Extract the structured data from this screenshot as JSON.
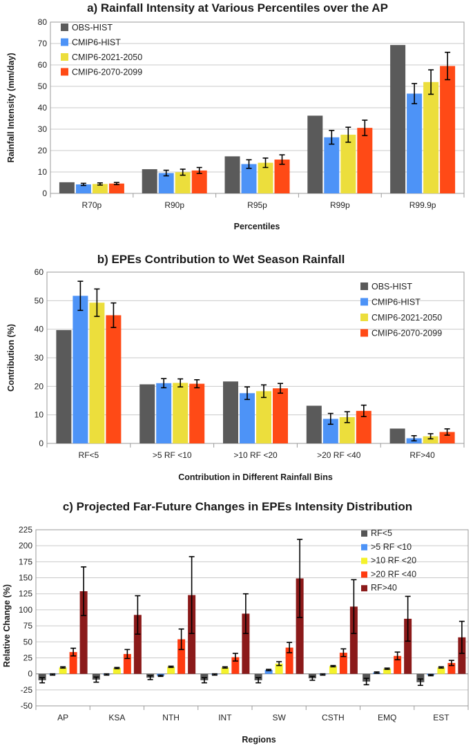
{
  "colors": {
    "obs": "#5a5a5a",
    "hist": "#4d93f7",
    "mid": "#ecde3c",
    "far": "#ff4a16",
    "rf5": "#555555",
    "rf10": "#4d93f7",
    "rf20": "#f4f22c",
    "rf40": "#ff3b10",
    "rfgt40": "#8b1a1a"
  },
  "chart_data": [
    {
      "type": "bar",
      "title": "a) Rainfall Intensity at Various Percentiles over the AP",
      "xlabel": "Percentiles",
      "ylabel": "Rainfall Intensity (mm/day)",
      "ylim": [
        0,
        80
      ],
      "yticks": [
        0,
        10,
        20,
        30,
        40,
        50,
        60,
        70,
        80
      ],
      "legend_position": "top-left",
      "categories": [
        "R70p",
        "R90p",
        "R95p",
        "R99p",
        "R99.9p"
      ],
      "series": [
        {
          "name": "OBS-HIST",
          "color_key": "obs",
          "values": [
            5.2,
            11.3,
            17.3,
            36.3,
            69.3
          ],
          "errors": [
            null,
            null,
            null,
            null,
            null
          ]
        },
        {
          "name": "CMIP6-HIST",
          "color_key": "hist",
          "values": [
            4.2,
            9.5,
            13.7,
            26.2,
            46.6
          ],
          "errors": [
            0.5,
            1.3,
            2.0,
            3.2,
            4.7
          ]
        },
        {
          "name": "CMIP6-2021-2050",
          "color_key": "mid",
          "values": [
            4.4,
            9.9,
            14.3,
            27.4,
            52.0
          ],
          "errors": [
            0.5,
            1.4,
            2.2,
            3.5,
            5.7
          ]
        },
        {
          "name": "CMIP6-2070-2099",
          "color_key": "far",
          "values": [
            4.6,
            10.7,
            15.8,
            30.6,
            59.5
          ],
          "errors": [
            0.5,
            1.4,
            2.2,
            3.6,
            6.4
          ]
        }
      ]
    },
    {
      "type": "bar",
      "title": "b) EPEs Contribution to Wet Season Rainfall",
      "xlabel": "Contribution in Different Rainfall Bins",
      "ylabel": "Contribution (%)",
      "ylim": [
        0,
        60
      ],
      "yticks": [
        0,
        10,
        20,
        30,
        40,
        50,
        60
      ],
      "legend_position": "right",
      "categories": [
        "RF<5",
        ">5 RF <10",
        ">10 RF <20",
        ">20 RF <40",
        "RF>40"
      ],
      "series": [
        {
          "name": "OBS-HIST",
          "color_key": "obs",
          "values": [
            39.7,
            20.7,
            21.7,
            13.2,
            5.2
          ],
          "errors": [
            null,
            null,
            null,
            null,
            null
          ]
        },
        {
          "name": "CMIP6-HIST",
          "color_key": "hist",
          "values": [
            51.7,
            21.1,
            17.6,
            8.6,
            1.8
          ],
          "errors": [
            5.1,
            1.6,
            2.2,
            1.9,
            0.9
          ]
        },
        {
          "name": "CMIP6-2021-2050",
          "color_key": "mid",
          "values": [
            49.3,
            21.2,
            18.3,
            9.2,
            2.5
          ],
          "errors": [
            4.8,
            1.4,
            2.2,
            1.9,
            0.9
          ]
        },
        {
          "name": "CMIP6-2070-2099",
          "color_key": "far",
          "values": [
            44.9,
            20.9,
            19.3,
            11.4,
            4.0
          ],
          "errors": [
            4.3,
            1.4,
            1.7,
            2.0,
            1.1
          ]
        }
      ]
    },
    {
      "type": "bar",
      "title": "c) Projected Far-Future Changes in EPEs Intensity Distribution",
      "xlabel": "Regions",
      "ylabel": "Relative Change (%)",
      "ylim": [
        -50,
        225
      ],
      "yticks": [
        -50,
        -25,
        0,
        25,
        50,
        75,
        100,
        125,
        150,
        175,
        200,
        225
      ],
      "legend_position": "top-right",
      "categories": [
        "AP",
        "KSA",
        "NTH",
        "INT",
        "SW",
        "CSTH",
        "EMQ",
        "EST"
      ],
      "series": [
        {
          "name": "RF<5",
          "color_key": "rf5",
          "values": [
            -10,
            -9,
            -6,
            -10,
            -10,
            -7,
            -12,
            -13
          ],
          "errors": [
            4,
            4,
            3,
            4,
            4,
            3,
            5,
            5
          ]
        },
        {
          "name": ">5 RF <10",
          "color_key": "rf10",
          "values": [
            -1,
            -1,
            -3,
            -1,
            6,
            -1,
            2,
            -2
          ],
          "errors": [
            1,
            1,
            1,
            1,
            1,
            1,
            1,
            1
          ]
        },
        {
          "name": ">10 RF <20",
          "color_key": "rf20",
          "values": [
            10,
            9,
            11,
            10,
            16,
            12,
            8,
            10
          ],
          "errors": [
            1,
            1,
            1,
            1,
            3,
            1,
            1,
            1
          ]
        },
        {
          "name": ">20 RF <40",
          "color_key": "rf40",
          "values": [
            34,
            31,
            54,
            26,
            41,
            33,
            28,
            17
          ],
          "errors": [
            6,
            7,
            16,
            6,
            8,
            6,
            6,
            4
          ]
        },
        {
          "name": "RF>40",
          "color_key": "rfgt40",
          "values": [
            129,
            92,
            123,
            94,
            149,
            105,
            86,
            57
          ],
          "errors": [
            38,
            30,
            60,
            31,
            61,
            42,
            35,
            25
          ]
        }
      ]
    }
  ]
}
